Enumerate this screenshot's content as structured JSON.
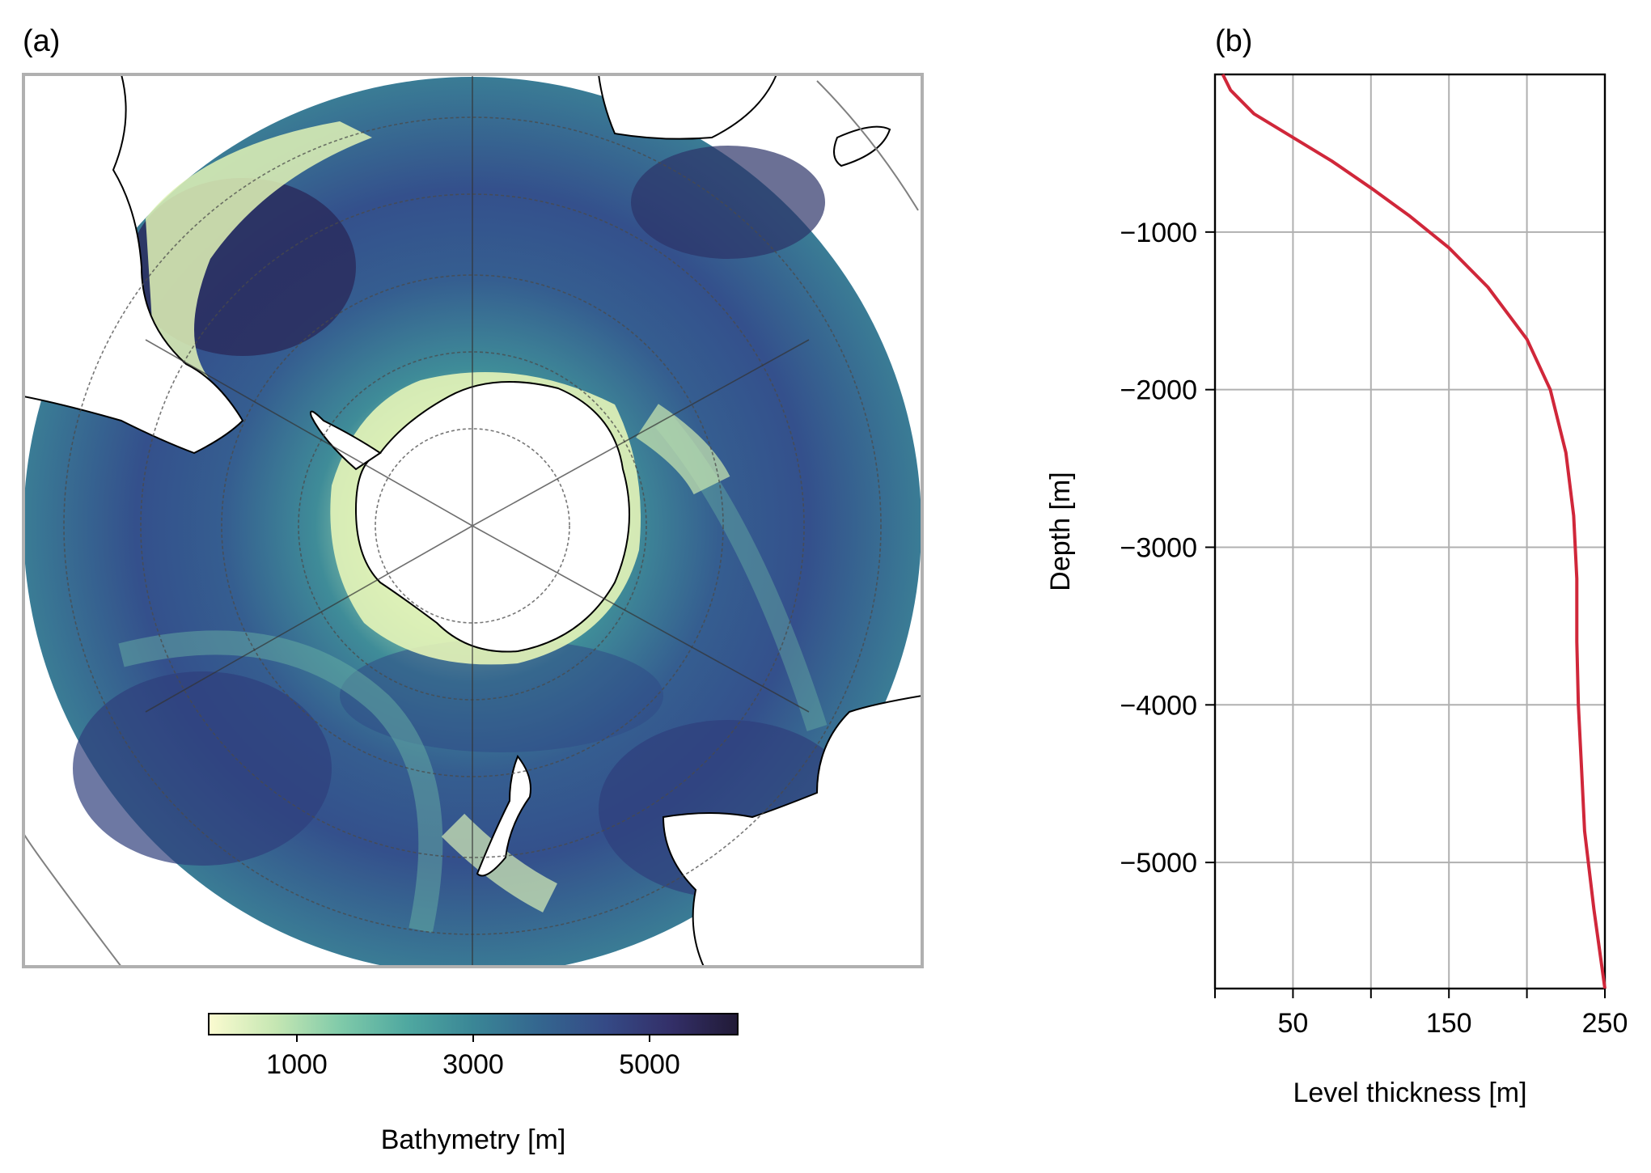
{
  "panel_a": {
    "label": "(a)",
    "colorbar": {
      "label": "Bathymetry [m]",
      "ticks": [
        "1000",
        "3000",
        "5000"
      ],
      "tick_values": [
        1000,
        3000,
        5000
      ],
      "range": [
        0,
        6000
      ],
      "colormap_stops": [
        "#fbfbd0",
        "#c6e7b3",
        "#7fcaa9",
        "#4fa8a0",
        "#3a8696",
        "#34668f",
        "#354a86",
        "#332f68",
        "#211a36"
      ]
    },
    "colors": {
      "ocean_shallow": "#e7f4b8",
      "ocean_mid": "#3f8c98",
      "ocean_deep": "#2c3a78",
      "land": "#ffffff",
      "coastline": "#000000",
      "frame": "#b0b0b0",
      "gridline": "#4a4a4a"
    }
  },
  "panel_b": {
    "label": "(b)",
    "xlabel": "Level thickness [m]",
    "ylabel": "Depth [m]",
    "xticks": [
      "50",
      "150",
      "250"
    ],
    "yticks": [
      "−1000",
      "−2000",
      "−3000",
      "−4000",
      "−5000"
    ]
  },
  "chart_data": {
    "type": "line",
    "x": [
      5,
      10,
      25,
      50,
      75,
      100,
      125,
      150,
      175,
      200,
      215,
      225,
      230,
      232,
      232,
      233,
      235,
      237,
      243,
      250
    ],
    "y": [
      0,
      -100,
      -250,
      -400,
      -550,
      -720,
      -900,
      -1100,
      -1350,
      -1680,
      -2000,
      -2400,
      -2800,
      -3200,
      -3600,
      -4000,
      -4400,
      -4800,
      -5300,
      -5800
    ],
    "series": [
      {
        "values_note": "",
        "color": "#d0273a"
      }
    ],
    "xlim": [
      0,
      250
    ],
    "ylim": [
      -5800,
      0
    ],
    "xtick_values": [
      50,
      150,
      250
    ],
    "ytick_values": [
      -1000,
      -2000,
      -3000,
      -4000,
      -5000
    ],
    "grid": true,
    "line_color": "#d0273a"
  }
}
